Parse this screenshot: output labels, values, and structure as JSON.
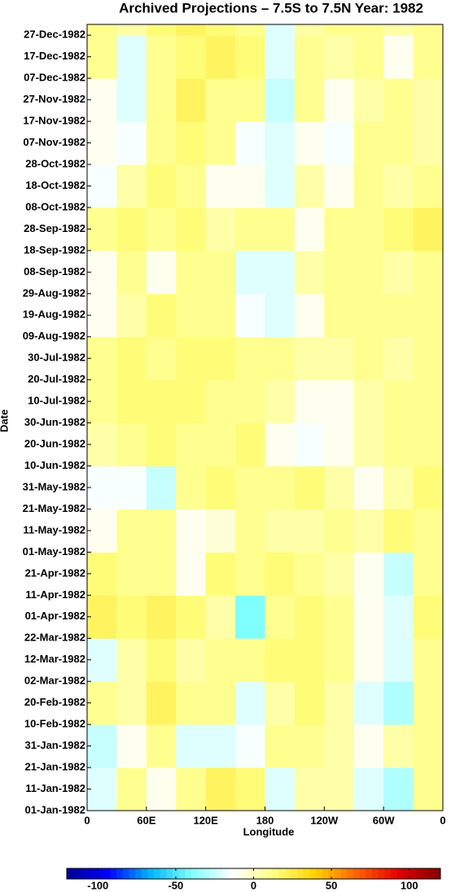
{
  "chart_data": {
    "type": "heatmap",
    "title": "Archived Projections – 7.5S to 7.5N Year: 1982",
    "xlabel": "Longitude",
    "ylabel": "Date",
    "xlim": [
      0,
      360
    ],
    "xticks": [
      0,
      {
        "value": 60,
        "label": "60E"
      },
      {
        "value": 120,
        "label": "120E"
      },
      180,
      {
        "value": 240,
        "label": "120W"
      },
      {
        "value": 300,
        "label": "60W"
      },
      {
        "value": 360,
        "label": "0"
      }
    ],
    "ylim": [
      "01-Jan-1982",
      "31-Dec-1982"
    ],
    "yticks": [
      "01-Jan-1982",
      "11-Jan-1982",
      "21-Jan-1982",
      "31-Jan-1982",
      "10-Feb-1982",
      "20-Feb-1982",
      "02-Mar-1982",
      "12-Mar-1982",
      "22-Mar-1982",
      "01-Apr-1982",
      "11-Apr-1982",
      "21-Apr-1982",
      "01-May-1982",
      "11-May-1982",
      "21-May-1982",
      "31-May-1982",
      "10-Jun-1982",
      "20-Jun-1982",
      "30-Jun-1982",
      "10-Jul-1982",
      "20-Jul-1982",
      "30-Jul-1982",
      "09-Aug-1982",
      "19-Aug-1982",
      "29-Aug-1982",
      "08-Sep-1982",
      "18-Sep-1982",
      "28-Sep-1982",
      "08-Oct-1982",
      "18-Oct-1982",
      "28-Oct-1982",
      "07-Nov-1982",
      "17-Nov-1982",
      "27-Nov-1982",
      "07-Dec-1982",
      "17-Dec-1982",
      "27-Dec-1982"
    ],
    "x": [
      15,
      45,
      75,
      105,
      135,
      165,
      195,
      225,
      255,
      285,
      315,
      345
    ],
    "y": [
      "01-Jan-1982",
      "21-Jan-1982",
      "10-Feb-1982",
      "02-Mar-1982",
      "22-Mar-1982",
      "11-Apr-1982",
      "01-May-1982",
      "21-May-1982",
      "10-Jun-1982",
      "30-Jun-1982",
      "20-Jul-1982",
      "09-Aug-1982",
      "29-Aug-1982",
      "18-Sep-1982",
      "08-Oct-1982",
      "28-Oct-1982",
      "17-Nov-1982",
      "07-Dec-1982",
      "27-Dec-1982"
    ],
    "values": [
      [
        -20,
        10,
        -10,
        10,
        20,
        15,
        -20,
        5,
        5,
        -20,
        -30,
        10
      ],
      [
        -25,
        -10,
        10,
        -20,
        -20,
        -15,
        10,
        10,
        5,
        -10,
        5,
        10
      ],
      [
        10,
        5,
        20,
        10,
        10,
        -20,
        5,
        15,
        5,
        -20,
        -30,
        10
      ],
      [
        -20,
        5,
        15,
        5,
        10,
        10,
        15,
        15,
        10,
        -10,
        -20,
        10
      ],
      [
        20,
        15,
        20,
        15,
        5,
        -40,
        10,
        15,
        10,
        -10,
        -20,
        15
      ],
      [
        15,
        10,
        10,
        -10,
        15,
        10,
        15,
        10,
        5,
        -10,
        -25,
        10
      ],
      [
        -10,
        10,
        10,
        -10,
        -5,
        10,
        5,
        5,
        10,
        5,
        15,
        10
      ],
      [
        -15,
        -15,
        -25,
        10,
        15,
        10,
        10,
        15,
        5,
        -10,
        5,
        15
      ],
      [
        5,
        10,
        15,
        10,
        10,
        15,
        -10,
        -15,
        -10,
        5,
        10,
        10
      ],
      [
        10,
        15,
        15,
        15,
        10,
        10,
        5,
        -10,
        -10,
        5,
        10,
        10
      ],
      [
        10,
        15,
        10,
        15,
        15,
        10,
        10,
        5,
        5,
        10,
        5,
        10
      ],
      [
        -10,
        5,
        15,
        10,
        10,
        -15,
        -20,
        -10,
        10,
        10,
        10,
        10
      ],
      [
        -10,
        10,
        -10,
        10,
        10,
        -20,
        -20,
        5,
        10,
        10,
        5,
        10
      ],
      [
        10,
        15,
        10,
        15,
        5,
        10,
        10,
        -10,
        10,
        10,
        15,
        20
      ],
      [
        -15,
        5,
        15,
        10,
        -10,
        -10,
        -20,
        5,
        -10,
        10,
        5,
        10
      ],
      [
        -10,
        -15,
        10,
        15,
        10,
        -15,
        -20,
        -10,
        -15,
        10,
        10,
        5
      ],
      [
        -10,
        -20,
        10,
        20,
        10,
        10,
        -25,
        10,
        -10,
        5,
        10,
        5
      ],
      [
        10,
        -20,
        10,
        15,
        20,
        15,
        -20,
        10,
        5,
        10,
        -10,
        10
      ],
      [
        10,
        5,
        15,
        20,
        15,
        10,
        -20,
        5,
        10,
        10,
        5,
        10
      ]
    ],
    "clim": [
      -120,
      120
    ],
    "colorbar_ticks": [
      -100,
      -50,
      0,
      50,
      100
    ],
    "colormap": [
      "#00008f",
      "#0000ff",
      "#00b4ff",
      "#7fffff",
      "#ffffff",
      "#ffff80",
      "#ffd000",
      "#ff6000",
      "#e00000",
      "#800000"
    ]
  }
}
